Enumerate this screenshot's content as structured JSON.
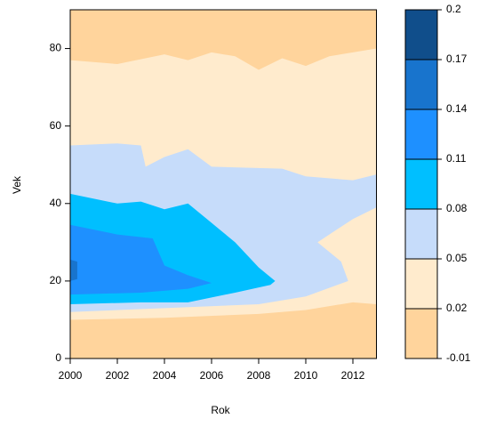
{
  "chart_data": {
    "type": "contour",
    "xlabel": "Rok",
    "ylabel": "Vek",
    "xlim": [
      2000,
      2013
    ],
    "ylim": [
      0,
      90
    ],
    "xticks": [
      2000,
      2002,
      2004,
      2006,
      2008,
      2010,
      2012
    ],
    "yticks": [
      0,
      20,
      40,
      60,
      80
    ],
    "levels": [
      -0.01,
      0.02,
      0.05,
      0.08,
      0.11,
      0.14,
      0.17,
      0.2
    ],
    "colors": [
      "#ffd49c",
      "#ffebcd",
      "#c6dcfa",
      "#00bfff",
      "#1e90ff",
      "#1874cd",
      "#104e8b"
    ],
    "regions": [
      {
        "color": "#ffd49c",
        "x": [
          2000,
          2013,
          2013,
          2000
        ],
        "y": [
          0,
          0,
          90,
          90
        ]
      },
      {
        "color": "#ffebcd",
        "x": [
          2000,
          2004,
          2008,
          2010,
          2012,
          2013,
          2013,
          2012,
          2011,
          2010,
          2009,
          2008,
          2007,
          2006,
          2005,
          2004,
          2002,
          2000
        ],
        "y": [
          10,
          10.5,
          11.5,
          12.5,
          14.5,
          14,
          80,
          79,
          78,
          75.5,
          77.5,
          74.5,
          78,
          79,
          77,
          78.5,
          76,
          77
        ]
      },
      {
        "color": "#c6dcfa",
        "x": [
          2000,
          2004,
          2008,
          2010,
          2011.8,
          2011.5,
          2010.5,
          2012,
          2013,
          2013,
          2012,
          2010,
          2009,
          2006,
          2005,
          2004,
          2003.2,
          2003,
          2002,
          2000
        ],
        "y": [
          12,
          13,
          14,
          16,
          20,
          25,
          30,
          36,
          39,
          47.5,
          46,
          47,
          49,
          49.5,
          54,
          52,
          49.5,
          55,
          55.5,
          55
        ]
      },
      {
        "color": "#00bfff",
        "x": [
          2000,
          2003,
          2005,
          2007,
          2008.5,
          2008.7,
          2008,
          2007,
          2006,
          2005,
          2004,
          2003,
          2002,
          2000
        ],
        "y": [
          14,
          14.5,
          14.5,
          17,
          19,
          20,
          23.5,
          30,
          35,
          40,
          38.5,
          40.5,
          40,
          42.5
        ]
      },
      {
        "color": "#1e90ff",
        "x": [
          2000,
          2003,
          2005,
          2006,
          2005,
          2004,
          2003.5,
          2002,
          2000
        ],
        "y": [
          16.5,
          17,
          18,
          19.5,
          21.5,
          24,
          31,
          32,
          34.5
        ]
      },
      {
        "color": "#1874cd",
        "x": [
          2000,
          2000.3,
          2000.3,
          2000
        ],
        "y": [
          20,
          20.5,
          25,
          25.5
        ]
      }
    ]
  }
}
